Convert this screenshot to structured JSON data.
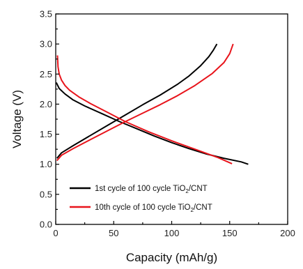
{
  "chart_data": {
    "type": "line",
    "xlabel": "Capacity (mAh/g)",
    "ylabel": "Voltage (V)",
    "xlim": [
      0,
      200
    ],
    "ylim": [
      0.0,
      3.5
    ],
    "x_ticks": [
      "0",
      "50",
      "100",
      "150",
      "200"
    ],
    "y_ticks": [
      "0.0",
      "0.5",
      "1.0",
      "1.5",
      "2.0",
      "2.5",
      "3.0",
      "3.5"
    ],
    "grid": false,
    "legend_position": "bottom-left",
    "legend": [
      {
        "prefix": "1st cycle of 100 cycle TiO",
        "sub": "2",
        "suffix": "/CNT",
        "color": "#000000"
      },
      {
        "prefix": "10th cycle of 100 cycle TiO",
        "sub": "2",
        "suffix": "/CNT",
        "color": "#e8141b"
      }
    ],
    "series": [
      {
        "color": "#000000",
        "curves": [
          {
            "x": [
              0.5,
              3,
              8,
              15,
              25,
              40,
              55,
              70,
              85,
              100,
              115,
              130,
              145,
              160,
              166
            ],
            "y": [
              2.36,
              2.26,
              2.17,
              2.07,
              1.97,
              1.84,
              1.71,
              1.59,
              1.47,
              1.36,
              1.26,
              1.17,
              1.1,
              1.04,
              1.0
            ]
          },
          {
            "x": [
              1,
              5,
              15,
              30,
              45,
              60,
              75,
              90,
              105,
              115,
              125,
              132,
              136,
              139
            ],
            "y": [
              1.1,
              1.19,
              1.31,
              1.48,
              1.65,
              1.82,
              1.99,
              2.15,
              2.33,
              2.47,
              2.64,
              2.79,
              2.9,
              3.0
            ]
          }
        ]
      },
      {
        "color": "#e8141b",
        "curves": [
          {
            "x": [
              1.5,
              2,
              3,
              5,
              8,
              12,
              20,
              30,
              45,
              60,
              80,
              100,
              120,
              140,
              152
            ],
            "y": [
              2.81,
              2.62,
              2.5,
              2.4,
              2.31,
              2.23,
              2.12,
              2.01,
              1.86,
              1.71,
              1.54,
              1.39,
              1.25,
              1.11,
              1.01
            ]
          },
          {
            "x": [
              1,
              5,
              15,
              30,
              45,
              60,
              75,
              90,
              105,
              120,
              135,
              145,
              150,
              153
            ],
            "y": [
              1.06,
              1.15,
              1.26,
              1.41,
              1.56,
              1.71,
              1.85,
              1.99,
              2.14,
              2.31,
              2.51,
              2.69,
              2.84,
              3.0
            ]
          }
        ]
      }
    ]
  }
}
